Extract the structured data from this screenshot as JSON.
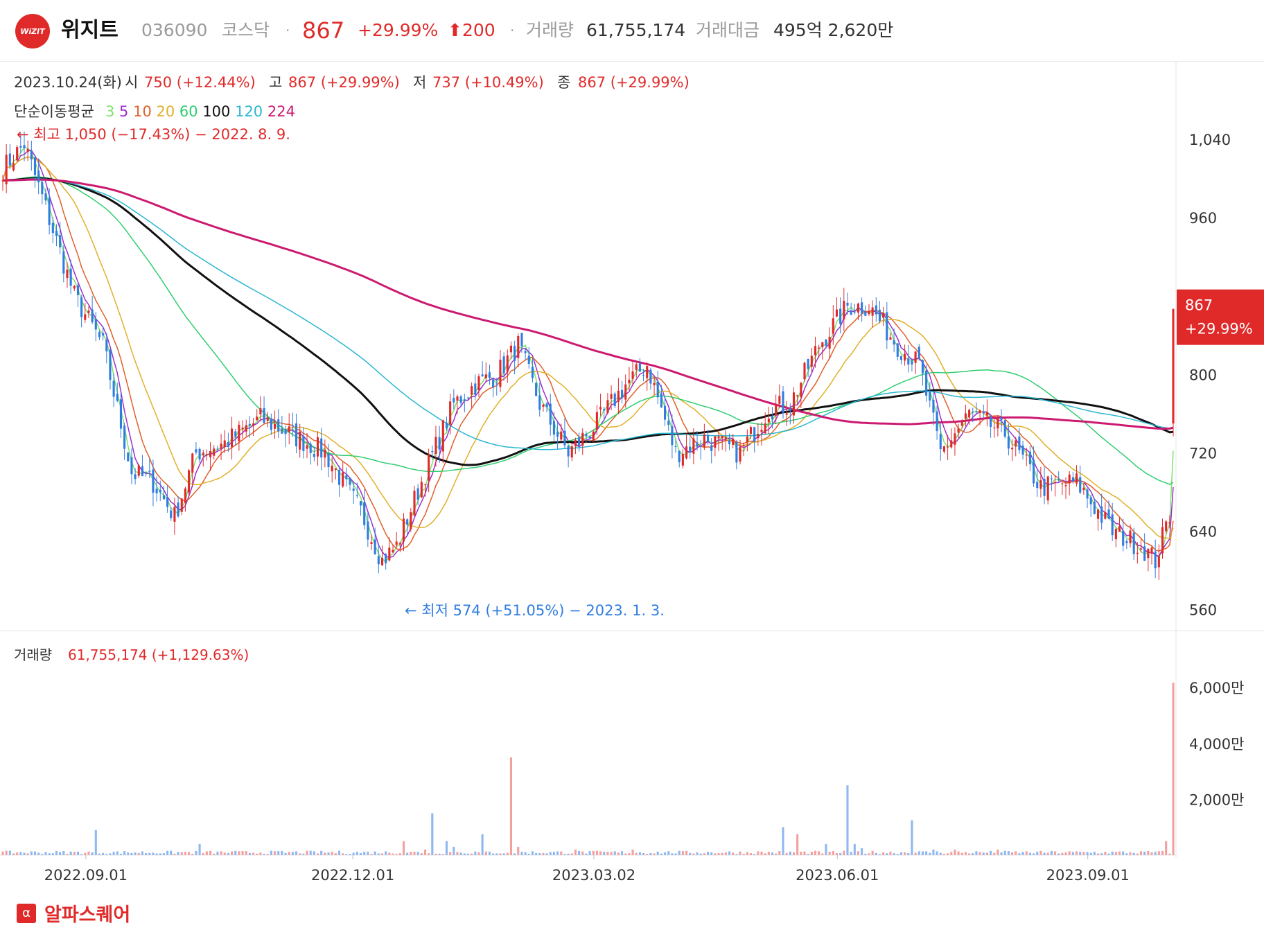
{
  "header": {
    "logo_text": "WiZIT",
    "name": "위지트",
    "code": "036090",
    "market": "코스닥",
    "dot": "·",
    "price": "867",
    "change_pct": "+29.99%",
    "change_abs": "⬆200",
    "volume_label": "거래량",
    "volume_value": "61,755,174",
    "amount_label": "거래대금",
    "amount_value": "495억 2,620만"
  },
  "colors": {
    "up": "#e02a2a",
    "down": "#2f7de0",
    "ma3": "#7ee26a",
    "ma5": "#9b2fc9",
    "ma10": "#e0602a",
    "ma20": "#e0b02a",
    "ma60": "#2fce70",
    "ma100": "#111111",
    "ma120": "#2ab6d0",
    "ma224": "#cc1a70"
  },
  "chart_data": {
    "type": "candlestick",
    "info_line": {
      "date": "2023.10.24(화)",
      "open_label": "시",
      "open": "750 (+12.44%)",
      "high_label": "고",
      "high": "867 (+29.99%)",
      "low_label": "저",
      "low": "737 (+10.49%)",
      "close_label": "종",
      "close": "867 (+29.99%)"
    },
    "ma_label": "단순이동평균",
    "ma_periods": [
      "3",
      "5",
      "10",
      "20",
      "60",
      "100",
      "120",
      "224"
    ],
    "price_axis": {
      "min": 540,
      "max": 1120,
      "ticks": [
        "1,040",
        "960",
        "800",
        "720",
        "640",
        "560"
      ],
      "tick_values": [
        1040,
        960,
        800,
        720,
        640,
        560
      ]
    },
    "current_price_tag": {
      "value": 867,
      "price": "867",
      "pct": "+29.99%"
    },
    "annotations": {
      "high": {
        "text": "← 최고 1,050 (−17.43%) − 2022. 8. 9.",
        "value": 1050
      },
      "low": {
        "text": "← 최저 574 (+51.05%) − 2023. 1. 3.",
        "value": 574
      }
    },
    "x_labels": [
      "2022.09.01",
      "2022.12.01",
      "2023.03.02",
      "2023.06.01",
      "2023.09.01"
    ],
    "x_label_fracs": [
      0.073,
      0.3,
      0.505,
      0.712,
      0.925
    ],
    "volume": {
      "label": "거래량",
      "value": "61,755,174 (+1,129.63%)",
      "axis_ticks": [
        "6,000만",
        "4,000만",
        "2,000만"
      ],
      "tick_values": [
        60000000,
        40000000,
        20000000
      ],
      "max": 66000000
    },
    "close_keyframes": [
      [
        0,
        1010
      ],
      [
        6,
        1035
      ],
      [
        12,
        970
      ],
      [
        20,
        880
      ],
      [
        28,
        830
      ],
      [
        36,
        700
      ],
      [
        42,
        690
      ],
      [
        48,
        655
      ],
      [
        54,
        720
      ],
      [
        62,
        730
      ],
      [
        72,
        755
      ],
      [
        80,
        740
      ],
      [
        90,
        720
      ],
      [
        100,
        660
      ],
      [
        106,
        610
      ],
      [
        110,
        625
      ],
      [
        118,
        700
      ],
      [
        126,
        770
      ],
      [
        132,
        790
      ],
      [
        138,
        800
      ],
      [
        144,
        830
      ],
      [
        150,
        770
      ],
      [
        158,
        720
      ],
      [
        166,
        750
      ],
      [
        174,
        790
      ],
      [
        180,
        810
      ],
      [
        188,
        720
      ],
      [
        196,
        735
      ],
      [
        206,
        720
      ],
      [
        214,
        765
      ],
      [
        220,
        770
      ],
      [
        228,
        830
      ],
      [
        236,
        870
      ],
      [
        242,
        870
      ],
      [
        250,
        830
      ],
      [
        256,
        810
      ],
      [
        262,
        720
      ],
      [
        270,
        760
      ],
      [
        280,
        740
      ],
      [
        290,
        685
      ],
      [
        300,
        690
      ],
      [
        310,
        640
      ],
      [
        318,
        625
      ],
      [
        322,
        610
      ],
      [
        326,
        657
      ],
      [
        327,
        867
      ]
    ],
    "volume_spikes": [
      [
        26,
        9000000
      ],
      [
        55,
        4000000
      ],
      [
        112,
        5000000
      ],
      [
        118,
        2000000
      ],
      [
        120,
        15000000
      ],
      [
        124,
        5000000
      ],
      [
        126,
        3000000
      ],
      [
        134,
        7500000
      ],
      [
        142,
        35000000
      ],
      [
        144,
        3000000
      ],
      [
        160,
        2000000
      ],
      [
        176,
        2000000
      ],
      [
        218,
        10000000
      ],
      [
        222,
        7500000
      ],
      [
        230,
        4000000
      ],
      [
        236,
        25000000
      ],
      [
        238,
        4000000
      ],
      [
        240,
        2500000
      ],
      [
        254,
        12500000
      ],
      [
        260,
        2000000
      ],
      [
        266,
        2000000
      ],
      [
        278,
        2000000
      ],
      [
        325,
        5000000
      ],
      [
        327,
        61755174
      ]
    ]
  },
  "brand": {
    "icon": "α",
    "name": "알파스퀘어"
  }
}
